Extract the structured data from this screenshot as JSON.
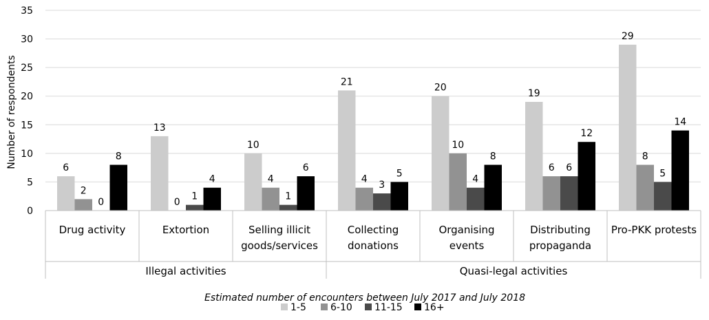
{
  "chart_data": {
    "type": "bar",
    "ylabel": "Number of respondents",
    "xlabel": "Estimated number of encounters between July 2017 and July 2018",
    "ylim": [
      0,
      35
    ],
    "yticks": [
      0,
      5,
      10,
      15,
      20,
      25,
      30,
      35
    ],
    "grid": true,
    "legend_position": "bottom",
    "categories": [
      [
        "Drug activity"
      ],
      [
        "Extortion"
      ],
      [
        "Selling illicit",
        "goods/services"
      ],
      [
        "Collecting",
        "donations"
      ],
      [
        "Organising",
        "events"
      ],
      [
        "Distributing",
        "propaganda"
      ],
      [
        "Pro-PKK protests"
      ]
    ],
    "groups": [
      {
        "label": "Illegal activities",
        "category_count": 3
      },
      {
        "label": "Quasi-legal activities",
        "category_count": 4
      }
    ],
    "series": [
      {
        "name": "1-5",
        "color": "#cccccc",
        "values": [
          6,
          13,
          10,
          21,
          20,
          19,
          29
        ]
      },
      {
        "name": "6-10",
        "color": "#929292",
        "values": [
          2,
          0,
          4,
          4,
          10,
          6,
          8
        ]
      },
      {
        "name": "11-15",
        "color": "#4a4a4a",
        "values": [
          0,
          1,
          1,
          3,
          4,
          6,
          5
        ]
      },
      {
        "name": "16+",
        "color": "#000000",
        "values": [
          8,
          4,
          6,
          5,
          8,
          12,
          14
        ]
      }
    ]
  }
}
